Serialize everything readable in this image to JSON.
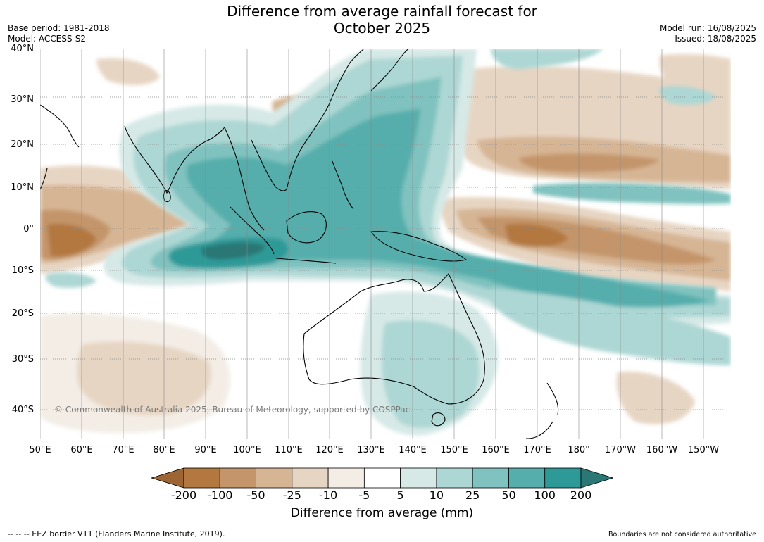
{
  "title_line1": "Difference from average rainfall forecast for",
  "title_line2": "October 2025",
  "base_period": "Base period: 1981-2018",
  "model": "Model: ACCESS-S2",
  "model_run": "Model run: 16/08/2025",
  "issued": "Issued: 18/08/2025",
  "copyright": "© Commonwealth of Australia 2025, Bureau of Meteorology, supported by COSPPac",
  "lat_labels": [
    "40°N",
    "30°N",
    "20°N",
    "10°N",
    "0°",
    "10°S",
    "20°S",
    "30°S",
    "40°S"
  ],
  "lon_labels": [
    "50°E",
    "60°E",
    "70°E",
    "80°E",
    "90°E",
    "100°E",
    "110°E",
    "120°E",
    "130°E",
    "140°E",
    "150°E",
    "160°E",
    "170°E",
    "180°",
    "170°W",
    "160°W",
    "150°W"
  ],
  "colorbar": {
    "ticks": [
      "-200",
      "-100",
      "-50",
      "-25",
      "-10",
      "-5",
      "5",
      "10",
      "25",
      "50",
      "100",
      "200"
    ],
    "colors": [
      "#9c6533",
      "#b27840",
      "#c4956a",
      "#d6b594",
      "#e7d5c3",
      "#f3ede6",
      "#ffffff",
      "#d6e9e7",
      "#add7d4",
      "#80c2bf",
      "#55aeac",
      "#2e9a98",
      "#2b7775"
    ],
    "label": "Difference from average (mm)"
  },
  "footnote_left": "--  --  -- EEZ border V11 (Flanders Marine Institute, 2019).",
  "footnote_right": "Boundaries are not considered authoritative"
}
